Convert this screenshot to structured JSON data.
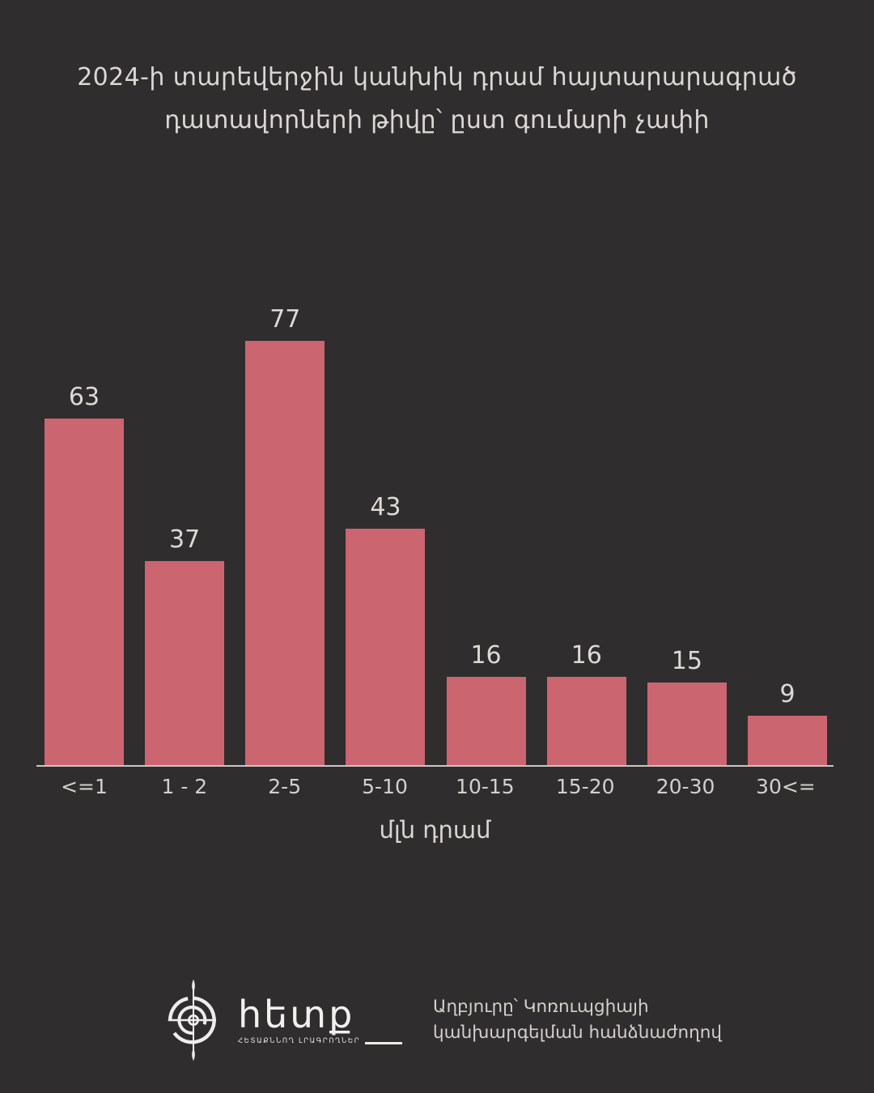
{
  "title": {
    "line1": "2024-ի տարեվերջին կանխիկ դրամ հայտարարագրած",
    "line2": "դատավորների թիվը՝ ըստ գումարի չափի"
  },
  "chart_data": {
    "type": "bar",
    "title": "2024-ի տարեվերջին կանխիկ դրամ հայտարարագրած դատավորների թիվը՝ ըստ գումարի չափի",
    "categories": [
      "<=1",
      "1 - 2",
      "2-5",
      "5-10",
      "10-15",
      "15-20",
      "20-30",
      "30<="
    ],
    "values": [
      63,
      37,
      77,
      43,
      16,
      16,
      15,
      9
    ],
    "xlabel": "մլն դրամ",
    "ylabel": "",
    "ylim": [
      0,
      80
    ],
    "grid": false,
    "legend": false,
    "value_labels": true,
    "bar_color": "#cb6570"
  },
  "footer": {
    "logo_wordmark": "հետք",
    "logo_tagline": "ՀԵՏԱՔՆՆՈՂ ԼՐԱԳՐՈՂՆԵՐ",
    "source_line1": "Աղբյուրը՝ Կոռուպցիայի",
    "source_line2": "կանխարգելման հանձնաժողով"
  },
  "colors": {
    "background": "#302d2e",
    "bar": "#cb6570",
    "text": "#d8d5d3",
    "axis": "#c9c6c4"
  }
}
